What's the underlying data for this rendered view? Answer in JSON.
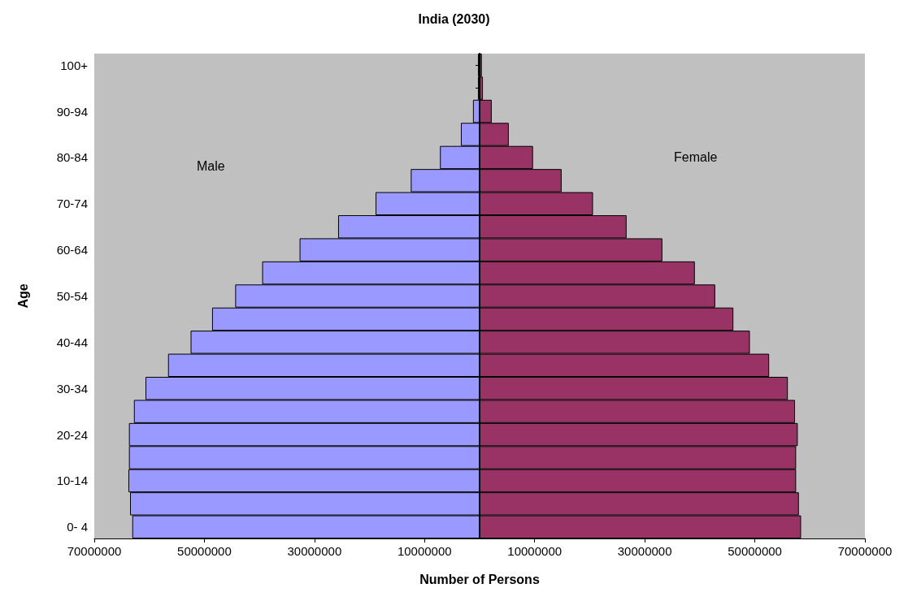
{
  "chart_data": {
    "type": "bar",
    "title": "India (2030)",
    "xlabel": "Number of Persons",
    "ylabel": "Age",
    "annotations": [
      "Male",
      "Female"
    ],
    "orientation": "horizontal",
    "stacked": true,
    "grid": false,
    "categories": [
      "100+",
      null,
      "90-94",
      null,
      "80-84",
      null,
      "70-74",
      null,
      "60-64",
      null,
      "50-54",
      null,
      "40-44",
      null,
      "30-34",
      null,
      "20-24",
      null,
      "10-14",
      null,
      "0- 4"
    ],
    "series": [
      {
        "color": "#9999ff",
        "values": [
          -300000,
          -300000,
          -1200000,
          -3400000,
          -7200000,
          -12500000,
          -18900000,
          -25700000,
          -32700000,
          -39500000,
          -44400000,
          -48600000,
          -52500000,
          -56600000,
          -60700000,
          -62800000,
          -63700000,
          -63700000,
          -63800000,
          -63500000,
          -63100000
        ]
      },
      {
        "color": "#993366",
        "values": [
          400000,
          600000,
          2200000,
          5300000,
          9700000,
          14900000,
          20600000,
          26700000,
          33200000,
          39100000,
          42800000,
          46100000,
          49100000,
          52600000,
          56000000,
          57300000,
          57800000,
          57500000,
          57500000,
          58000000,
          58400000
        ]
      }
    ],
    "xlim": [
      -70000000,
      70000000
    ],
    "xticks": [
      {
        "value": -70000000,
        "label": "70000000"
      },
      {
        "value": -50000000,
        "label": "50000000"
      },
      {
        "value": -30000000,
        "label": "30000000"
      },
      {
        "value": -10000000,
        "label": "10000000"
      },
      10000000,
      30000000,
      50000000,
      70000000
    ]
  }
}
